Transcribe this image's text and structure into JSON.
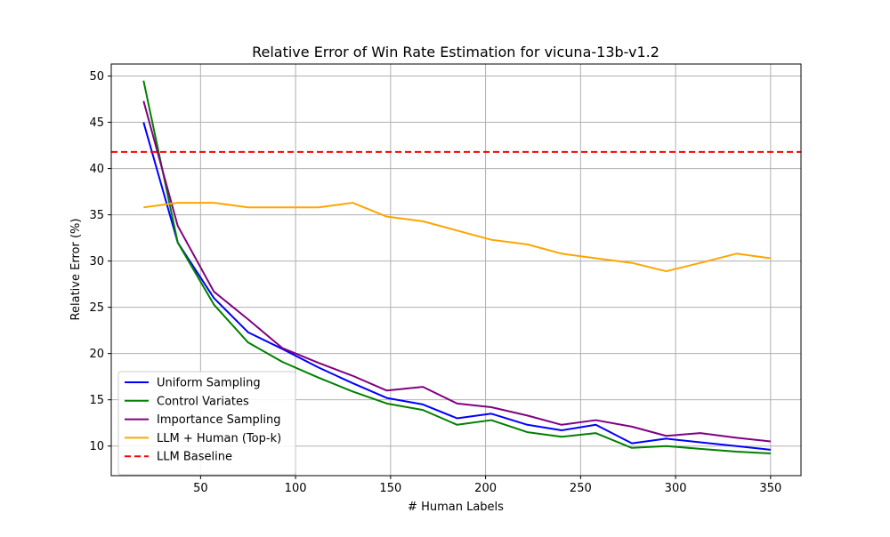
{
  "chart_data": {
    "type": "line",
    "title": "Relative Error of Win Rate Estimation for vicuna-13b-v1.2",
    "xlabel": "# Human Labels",
    "ylabel": "Relative Error (%)",
    "xlim": [
      3,
      366
    ],
    "ylim": [
      6.8,
      51.3
    ],
    "x_ticks": [
      50,
      100,
      150,
      200,
      250,
      300,
      350
    ],
    "y_ticks": [
      10,
      15,
      20,
      25,
      30,
      35,
      40,
      45,
      50
    ],
    "grid": true,
    "legend_position": "lower-left",
    "x": [
      20,
      38,
      57,
      75,
      93,
      112,
      130,
      148,
      167,
      185,
      203,
      222,
      240,
      258,
      277,
      295,
      313,
      332,
      350
    ],
    "series": [
      {
        "name": "Uniform Sampling",
        "color": "#0000ff",
        "style": "solid",
        "values": [
          45.0,
          32.0,
          26.0,
          22.3,
          20.5,
          18.5,
          16.8,
          15.2,
          14.5,
          13.0,
          13.5,
          12.3,
          11.7,
          12.3,
          10.3,
          10.8,
          10.4,
          10.0,
          9.6
        ]
      },
      {
        "name": "Control Variates",
        "color": "#008000",
        "style": "solid",
        "values": [
          49.5,
          32.0,
          25.3,
          21.2,
          19.1,
          17.4,
          15.9,
          14.6,
          13.9,
          12.3,
          12.8,
          11.5,
          11.0,
          11.4,
          9.8,
          10.0,
          9.7,
          9.4,
          9.2
        ]
      },
      {
        "name": "Importance Sampling",
        "color": "#800080",
        "style": "solid",
        "values": [
          47.3,
          33.8,
          26.7,
          23.7,
          20.6,
          19.0,
          17.6,
          16.0,
          16.4,
          14.6,
          14.2,
          13.3,
          12.3,
          12.8,
          12.1,
          11.1,
          11.4,
          10.9,
          10.5
        ]
      },
      {
        "name": "LLM + Human (Top-k)",
        "color": "#ffa500",
        "style": "solid",
        "values": [
          35.8,
          36.3,
          36.3,
          35.8,
          35.8,
          35.8,
          36.3,
          34.8,
          34.3,
          33.3,
          32.3,
          31.8,
          30.8,
          30.3,
          29.8,
          28.9,
          29.8,
          30.8,
          30.3
        ]
      },
      {
        "name": "LLM Baseline",
        "color": "#ff0000",
        "style": "dashed",
        "constant": 41.8
      }
    ]
  }
}
